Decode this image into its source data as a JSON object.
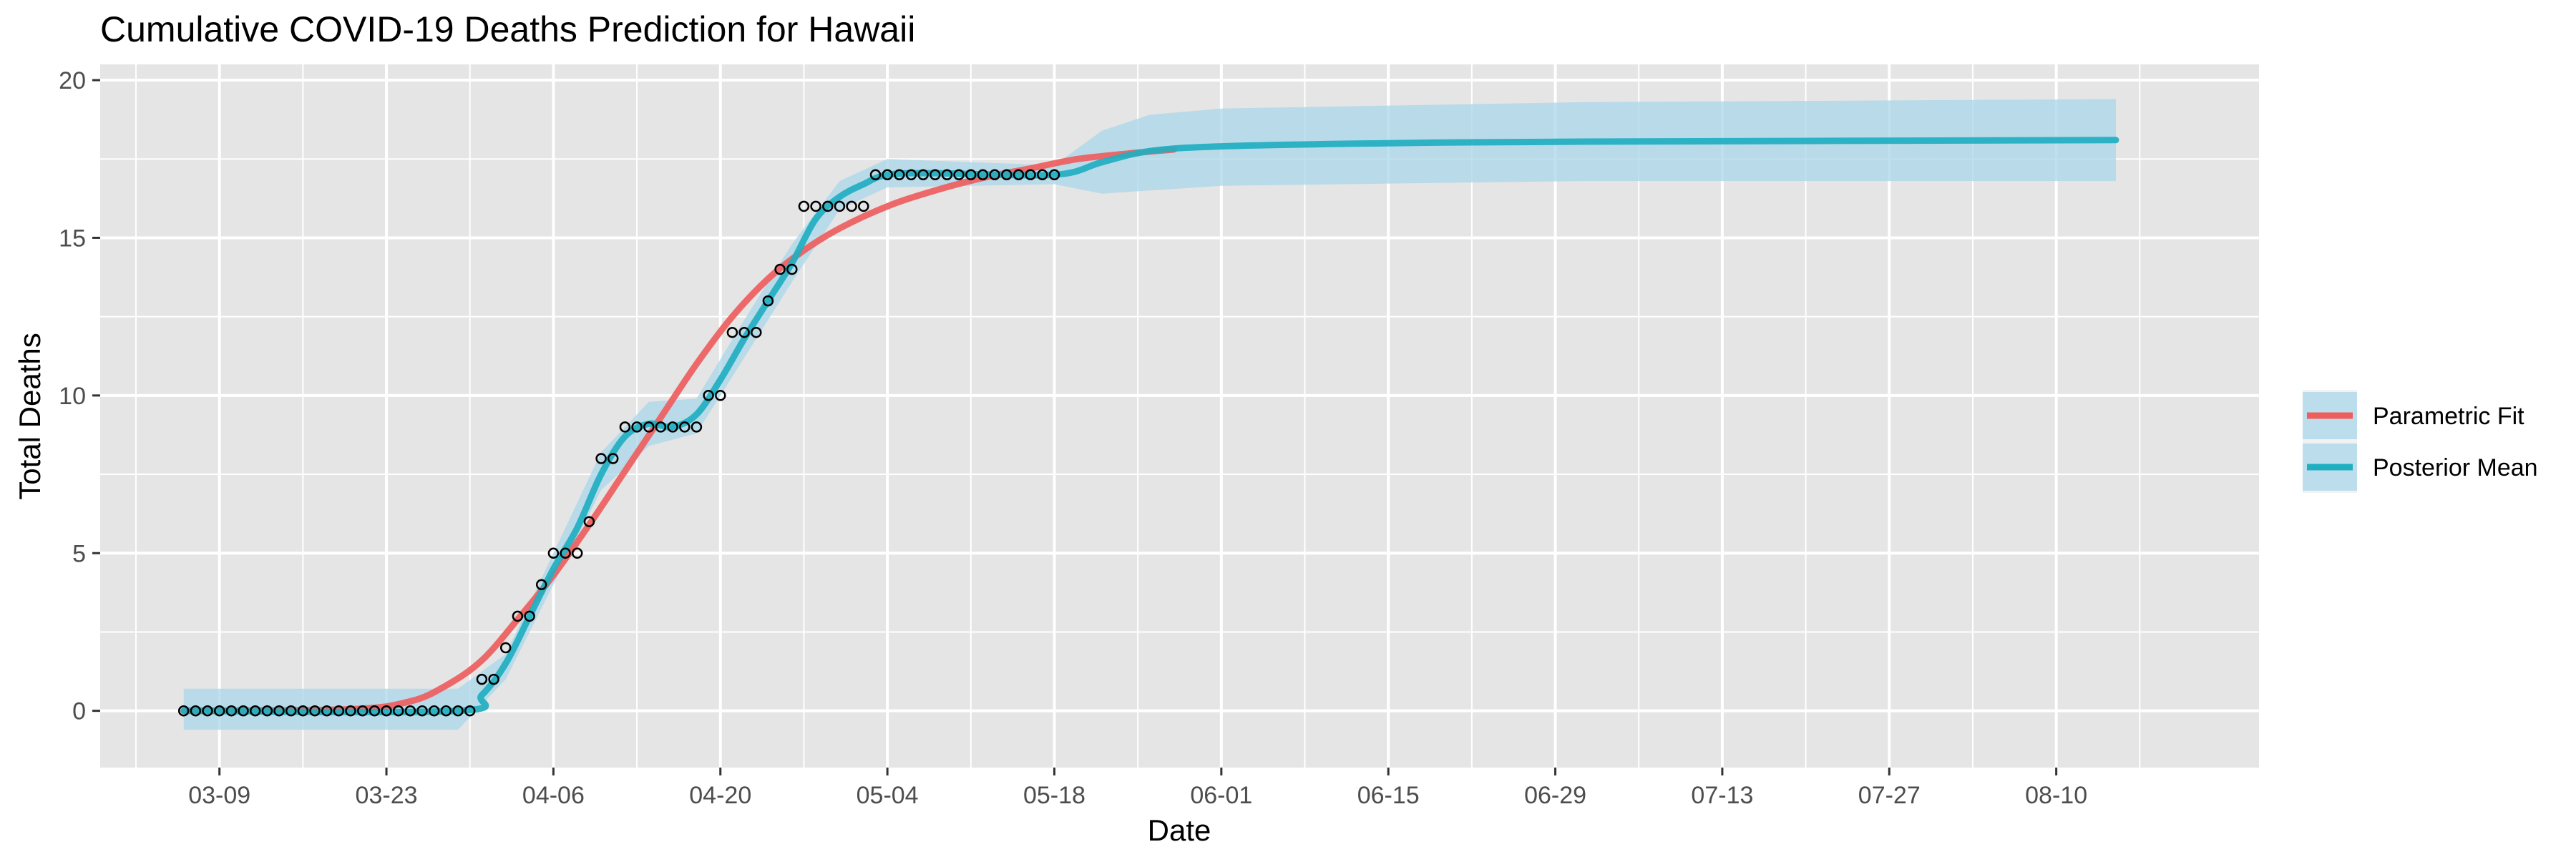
{
  "chart_data": {
    "type": "line",
    "title": "Cumulative COVID-19 Deaths Prediction for Hawaii",
    "xlabel": "Date",
    "ylabel": "Total Deaths",
    "xlim": [
      "2020-02-28",
      "2020-08-27"
    ],
    "ylim": [
      -1.8,
      20.5
    ],
    "x_ticks": [
      "03-09",
      "03-23",
      "04-06",
      "04-20",
      "05-04",
      "05-18",
      "06-01",
      "06-15",
      "06-29",
      "07-13",
      "07-27",
      "08-10"
    ],
    "y_ticks": [
      0,
      5,
      10,
      15,
      20
    ],
    "grid": true,
    "legend_position": "right",
    "legend": [
      {
        "label": "Parametric Fit",
        "color": "#EE5E5E"
      },
      {
        "label": "Posterior Mean",
        "color": "#20AFC0"
      }
    ],
    "colors": {
      "panel_background": "#E5E5E5",
      "grid": "#FFFFFF",
      "band": "#A9D5E8"
    },
    "observed": {
      "start_date": "2020-03-06",
      "values": [
        0,
        0,
        0,
        0,
        0,
        0,
        0,
        0,
        0,
        0,
        0,
        0,
        0,
        0,
        0,
        0,
        0,
        0,
        0,
        0,
        0,
        0,
        0,
        0,
        0,
        1,
        1,
        2,
        3,
        3,
        4,
        5,
        5,
        5,
        6,
        8,
        8,
        9,
        9,
        9,
        9,
        9,
        9,
        9,
        10,
        10,
        12,
        12,
        12,
        13,
        14,
        14,
        16,
        16,
        16,
        16,
        16,
        16,
        17,
        17,
        17,
        17,
        17,
        17,
        17,
        17,
        17,
        17,
        17,
        17,
        17,
        17,
        17,
        17
      ]
    },
    "series": [
      {
        "name": "Parametric Fit",
        "color": "#EE5E5E",
        "points": [
          [
            "2020-03-06",
            0
          ],
          [
            "2020-03-20",
            0.05
          ],
          [
            "2020-03-25",
            0.3
          ],
          [
            "2020-03-28",
            0.8
          ],
          [
            "2020-03-31",
            1.6
          ],
          [
            "2020-04-03",
            2.9
          ],
          [
            "2020-04-06",
            4.3
          ],
          [
            "2020-04-09",
            5.9
          ],
          [
            "2020-04-12",
            7.6
          ],
          [
            "2020-04-15",
            9.3
          ],
          [
            "2020-04-18",
            11.0
          ],
          [
            "2020-04-21",
            12.5
          ],
          [
            "2020-04-24",
            13.7
          ],
          [
            "2020-04-27",
            14.6
          ],
          [
            "2020-04-30",
            15.3
          ],
          [
            "2020-05-04",
            16.0
          ],
          [
            "2020-05-08",
            16.5
          ],
          [
            "2020-05-12",
            16.9
          ],
          [
            "2020-05-16",
            17.2
          ],
          [
            "2020-05-20",
            17.5
          ],
          [
            "2020-05-25",
            17.7
          ],
          [
            "2020-05-28",
            17.8
          ]
        ]
      },
      {
        "name": "Posterior Mean",
        "color": "#20AFC0",
        "points": [
          [
            "2020-03-06",
            0
          ],
          [
            "2020-03-29",
            0
          ],
          [
            "2020-03-31",
            0.5
          ],
          [
            "2020-04-02",
            1.5
          ],
          [
            "2020-04-04",
            3.0
          ],
          [
            "2020-04-06",
            4.5
          ],
          [
            "2020-04-08",
            5.8
          ],
          [
            "2020-04-10",
            7.5
          ],
          [
            "2020-04-12",
            8.7
          ],
          [
            "2020-04-14",
            9.1
          ],
          [
            "2020-04-16",
            9.0
          ],
          [
            "2020-04-18",
            9.4
          ],
          [
            "2020-04-20",
            10.5
          ],
          [
            "2020-04-22",
            11.8
          ],
          [
            "2020-04-24",
            13.0
          ],
          [
            "2020-04-26",
            14.2
          ],
          [
            "2020-04-28",
            15.6
          ],
          [
            "2020-04-30",
            16.3
          ],
          [
            "2020-05-02",
            16.7
          ],
          [
            "2020-05-04",
            17.0
          ],
          [
            "2020-05-08",
            17.05
          ],
          [
            "2020-05-18",
            17.0
          ],
          [
            "2020-05-22",
            17.4
          ],
          [
            "2020-05-26",
            17.75
          ],
          [
            "2020-06-01",
            17.9
          ],
          [
            "2020-06-15",
            18.0
          ],
          [
            "2020-07-01",
            18.05
          ],
          [
            "2020-08-15",
            18.1
          ]
        ]
      }
    ],
    "band": {
      "upper": [
        [
          "2020-03-06",
          0.7
        ],
        [
          "2020-03-29",
          0.7
        ],
        [
          "2020-04-02",
          1.8
        ],
        [
          "2020-04-06",
          5.0
        ],
        [
          "2020-04-10",
          8.2
        ],
        [
          "2020-04-14",
          9.8
        ],
        [
          "2020-04-18",
          9.9
        ],
        [
          "2020-04-22",
          12.4
        ],
        [
          "2020-04-26",
          14.8
        ],
        [
          "2020-04-30",
          16.8
        ],
        [
          "2020-05-04",
          17.5
        ],
        [
          "2020-05-18",
          17.3
        ],
        [
          "2020-05-22",
          18.4
        ],
        [
          "2020-05-26",
          18.9
        ],
        [
          "2020-06-01",
          19.1
        ],
        [
          "2020-07-01",
          19.3
        ],
        [
          "2020-08-15",
          19.4
        ]
      ],
      "lower": [
        [
          "2020-08-15",
          16.8
        ],
        [
          "2020-07-01",
          16.8
        ],
        [
          "2020-06-01",
          16.65
        ],
        [
          "2020-05-26",
          16.5
        ],
        [
          "2020-05-22",
          16.4
        ],
        [
          "2020-05-18",
          16.7
        ],
        [
          "2020-05-04",
          16.6
        ],
        [
          "2020-04-30",
          15.9
        ],
        [
          "2020-04-26",
          13.6
        ],
        [
          "2020-04-22",
          11.2
        ],
        [
          "2020-04-18",
          8.8
        ],
        [
          "2020-04-14",
          8.4
        ],
        [
          "2020-04-10",
          7.0
        ],
        [
          "2020-04-06",
          4.0
        ],
        [
          "2020-04-02",
          1.0
        ],
        [
          "2020-03-29",
          -0.6
        ],
        [
          "2020-03-06",
          -0.6
        ]
      ]
    }
  }
}
